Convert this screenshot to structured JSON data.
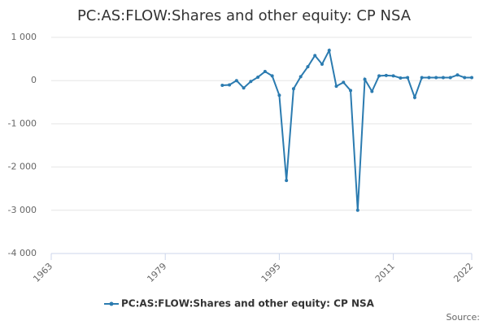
{
  "chart_data": {
    "type": "line",
    "title": "PC:AS:FLOW:Shares and other equity: CP NSA",
    "source": "Source:",
    "x": [
      1987,
      1988,
      1989,
      1990,
      1991,
      1992,
      1993,
      1994,
      1995,
      1996,
      1997,
      1998,
      1999,
      2000,
      2001,
      2002,
      2003,
      2004,
      2005,
      2006,
      2007,
      2008,
      2009,
      2010,
      2011,
      2012,
      2013,
      2014,
      2015,
      2016,
      2017,
      2018,
      2019,
      2020,
      2021,
      2022
    ],
    "series": [
      {
        "name": "PC:AS:FLOW:Shares and other equity: CP NSA",
        "color": "#2b7bb0",
        "values": [
          -110,
          -100,
          0,
          -170,
          -20,
          80,
          210,
          110,
          -340,
          -2310,
          -190,
          90,
          320,
          580,
          380,
          700,
          -130,
          -40,
          -230,
          -3000,
          30,
          -250,
          110,
          120,
          110,
          60,
          70,
          -390,
          70,
          70,
          70,
          70,
          70,
          130,
          70,
          70
        ]
      }
    ],
    "xlim": [
      1963,
      2022
    ],
    "xticks": [
      1963,
      1979,
      1995,
      2011,
      2022
    ],
    "ylim": [
      -4000,
      1000
    ],
    "yticks": [
      {
        "value": 1000,
        "label": "1 000"
      },
      0,
      {
        "value": -1000,
        "label": "-1 000"
      },
      {
        "value": -2000,
        "label": "-2 000"
      },
      {
        "value": -3000,
        "label": "-3 000"
      },
      {
        "value": -4000,
        "label": "-4 000"
      }
    ],
    "grid": true
  }
}
